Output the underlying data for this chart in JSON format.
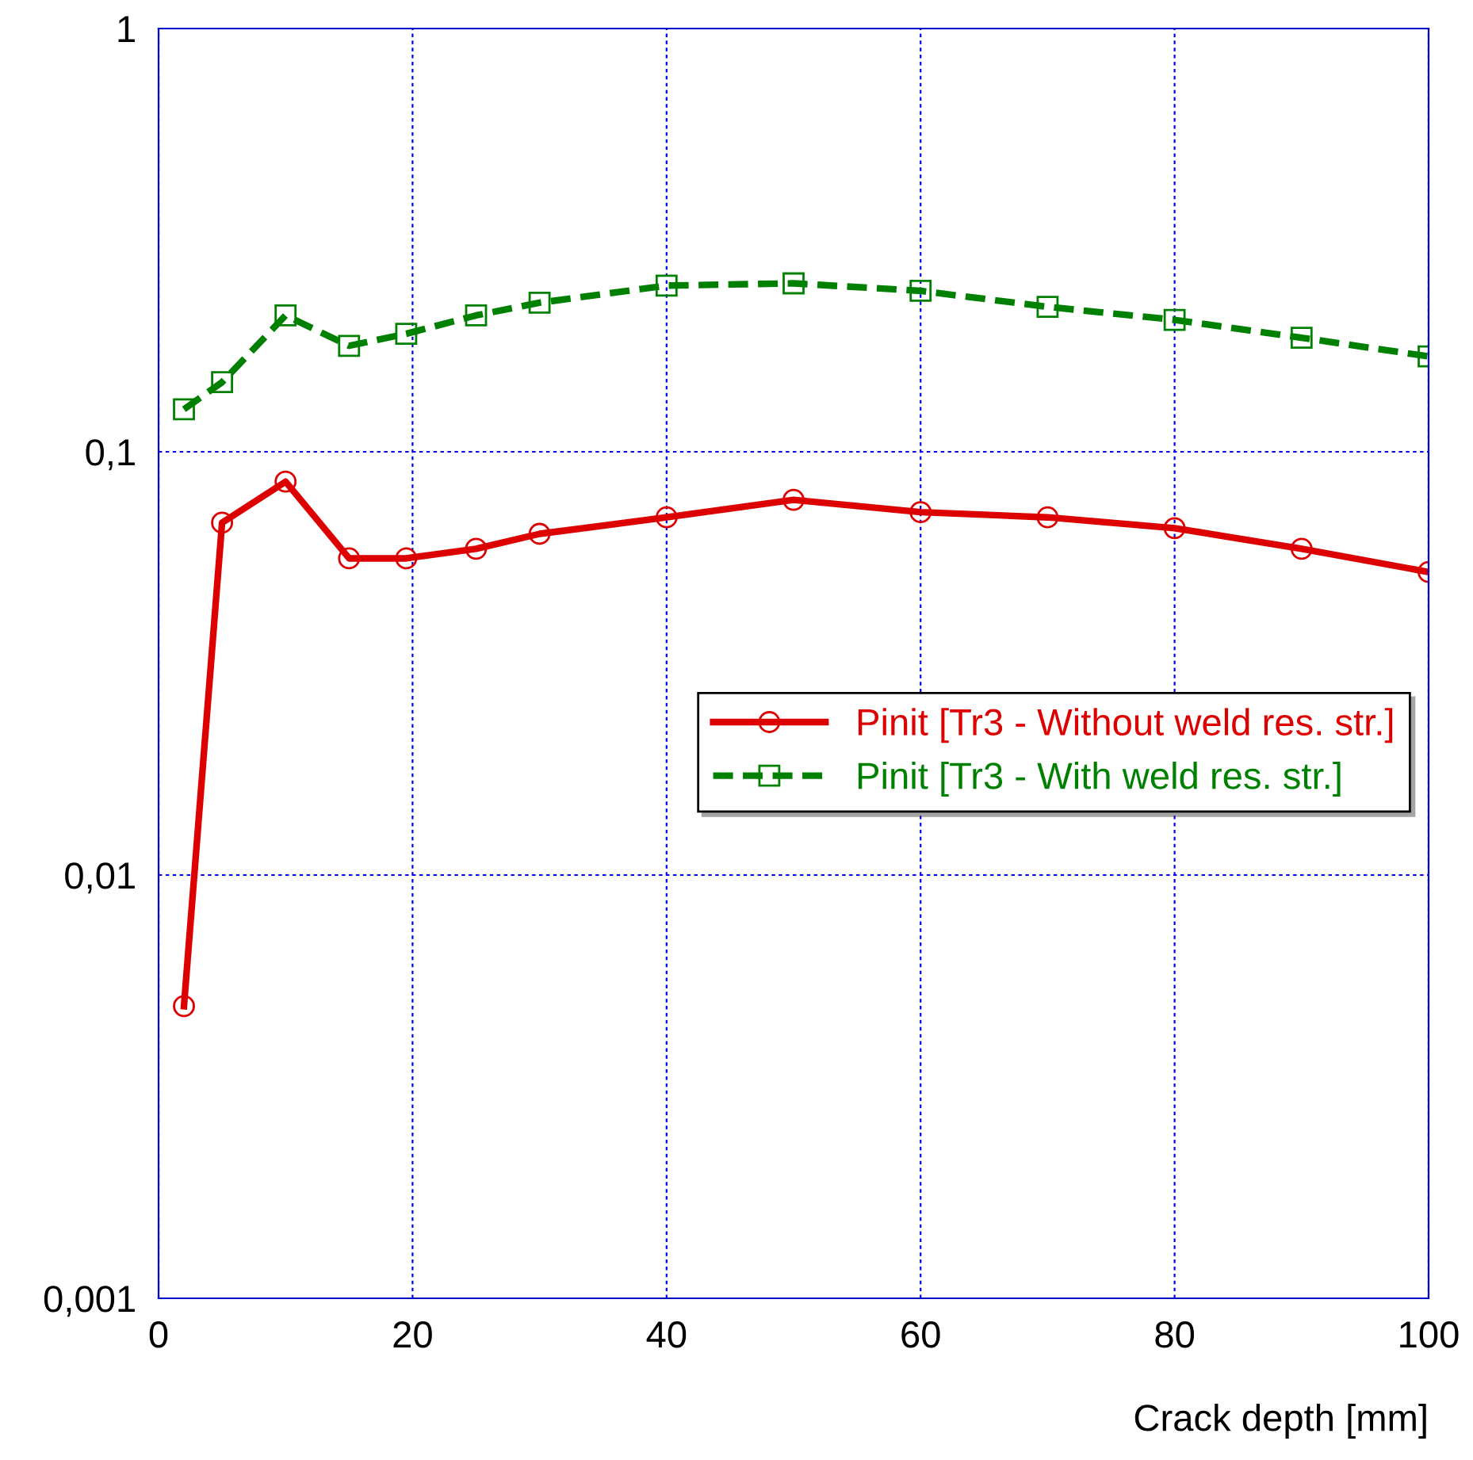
{
  "chart_data": {
    "type": "line",
    "xlabel": "Crack depth [mm]",
    "log": "y",
    "xlim": [
      0,
      100
    ],
    "xticks": [
      0,
      20,
      40,
      60,
      80,
      100
    ],
    "ylim": [
      0.001,
      1
    ],
    "yticks": [
      {
        "value": 0.001,
        "label": "0,001"
      },
      {
        "value": 0.01,
        "label": "0,01"
      },
      {
        "value": 0.1,
        "label": "0,1"
      },
      {
        "value": 1,
        "label": "1"
      }
    ],
    "x": [
      2,
      5,
      10,
      15,
      19.5,
      25,
      30,
      40,
      50,
      60,
      70,
      80,
      90,
      100
    ],
    "series": [
      {
        "name": "Pinit [Tr3 - Without weld res. str.]",
        "color": "#dd0000",
        "marker": "circle",
        "line_style": "solid",
        "values": [
          0.0049,
          0.068,
          0.085,
          0.056,
          0.056,
          0.059,
          0.064,
          0.07,
          0.077,
          0.072,
          0.07,
          0.066,
          0.059,
          0.052
        ]
      },
      {
        "name": "Pinit [Tr3 - With weld res. str.]",
        "color": "#008000",
        "marker": "square",
        "line_style": "dashed",
        "values": [
          0.126,
          0.146,
          0.21,
          0.178,
          0.19,
          0.21,
          0.225,
          0.247,
          0.25,
          0.24,
          0.22,
          0.205,
          0.186,
          0.168
        ]
      }
    ],
    "grid": true,
    "legend": "right"
  }
}
